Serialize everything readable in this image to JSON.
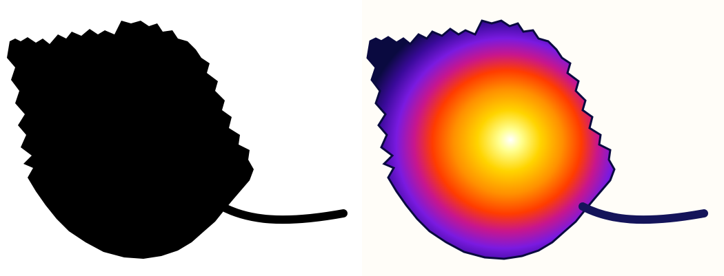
{
  "panels": [
    {
      "kind": "binary-mask",
      "background": "#ffffff",
      "fill": "#000000"
    },
    {
      "kind": "distance-transform-heatmap",
      "background": "#fffdf8",
      "colormap": [
        "#0a0a3a",
        "#3a0a8a",
        "#7a1ae0",
        "#c0178a",
        "#ff3a00",
        "#ff8a00",
        "#ffd000",
        "#ffff80",
        "#ffffff"
      ]
    }
  ]
}
